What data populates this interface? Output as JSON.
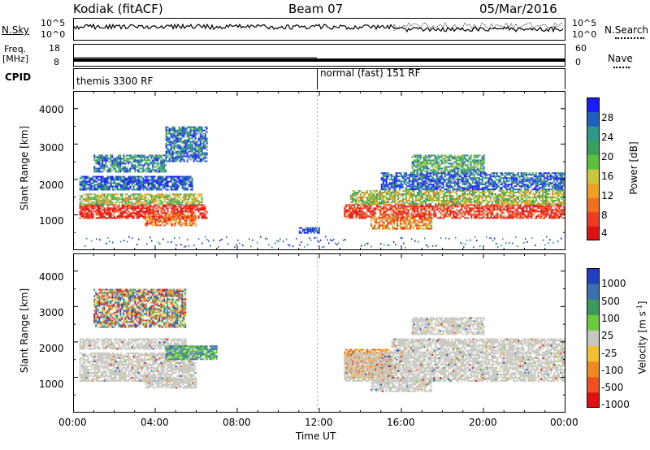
{
  "header": {
    "station": "Kodiak (fitACF)",
    "beam": "Beam 07",
    "date": "05/Mar/2016"
  },
  "nsky_panel": {
    "left_label": "N.Sky",
    "right_label": "N.Search",
    "left_ticks": [
      "10^5",
      "10^0"
    ],
    "right_ticks": [
      "10^5",
      "10^0"
    ]
  },
  "freq_panel": {
    "left_label_line1": "Freq.",
    "left_label_line2": "[MHz]",
    "right_label": "Nave",
    "left_ticks": [
      "18",
      "8"
    ],
    "right_ticks": [
      "60",
      "0"
    ]
  },
  "cpid_panel": {
    "label": "CPID",
    "mode_1": "themis 3300 RF",
    "mode_2": "normal (fast) 151 RF"
  },
  "x_axis": {
    "label": "Time UT",
    "ticks": [
      "00:00",
      "04:00",
      "08:00",
      "12:00",
      "16:00",
      "20:00",
      "00:00"
    ]
  },
  "chart_data": [
    {
      "type": "heatmap",
      "name": "power",
      "ylabel": "Slant Range [km]",
      "ylim": [
        0,
        4500
      ],
      "y_ticks": [
        "4000",
        "3000",
        "2000",
        "1000"
      ],
      "xlim_hours": [
        0,
        24
      ],
      "colorbar": {
        "label": "Power [dB]",
        "ticks": [
          "28",
          "24",
          "20",
          "16",
          "12",
          "8",
          "4"
        ],
        "colors": [
          "#1a1aff",
          "#1f5fbf",
          "#2a9a8a",
          "#3aa05a",
          "#5cbf3a",
          "#c8c83a",
          "#f0a020",
          "#f07020",
          "#f03a20",
          "#e01010"
        ]
      },
      "bands": [
        {
          "t0": 0.3,
          "t1": 6.5,
          "r0": 900,
          "r1": 1300,
          "level": 0.95
        },
        {
          "t0": 0.3,
          "t1": 6.3,
          "r0": 1300,
          "r1": 1600,
          "level": 0.5
        },
        {
          "t0": 0.3,
          "t1": 5.8,
          "r0": 1700,
          "r1": 2100,
          "level": 0.15
        },
        {
          "t0": 3.5,
          "t1": 6.0,
          "r0": 700,
          "r1": 1000,
          "level": 0.75
        },
        {
          "t0": 1.0,
          "t1": 4.5,
          "r0": 2200,
          "r1": 2700,
          "level": 0.25
        },
        {
          "t0": 4.5,
          "t1": 6.5,
          "r0": 2500,
          "r1": 3500,
          "level": 0.2
        },
        {
          "t0": 11.0,
          "t1": 12.0,
          "r0": 500,
          "r1": 650,
          "level": 0.1
        },
        {
          "t0": 13.2,
          "t1": 24.0,
          "r0": 900,
          "r1": 1300,
          "level": 0.9
        },
        {
          "t0": 13.5,
          "t1": 24.0,
          "r0": 1300,
          "r1": 1700,
          "level": 0.5
        },
        {
          "t0": 15.0,
          "t1": 24.0,
          "r0": 1700,
          "r1": 2200,
          "level": 0.15
        },
        {
          "t0": 14.5,
          "t1": 17.5,
          "r0": 600,
          "r1": 950,
          "level": 0.7
        },
        {
          "t0": 16.5,
          "t1": 20.0,
          "r0": 2200,
          "r1": 2700,
          "level": 0.35
        }
      ]
    },
    {
      "type": "heatmap",
      "name": "velocity",
      "ylabel": "Slant Range [km]",
      "ylim": [
        0,
        4500
      ],
      "y_ticks": [
        "4000",
        "3000",
        "2000",
        "1000"
      ],
      "xlim_hours": [
        0,
        24
      ],
      "colorbar": {
        "label": "Velocity [m s",
        "label_sup": "-1",
        "label_end": "]",
        "ticks": [
          "1000",
          "500",
          "100",
          "25",
          "-25",
          "-100",
          "-500",
          "-1000"
        ],
        "colors": [
          "#2040c0",
          "#3a70b0",
          "#3a9a5a",
          "#6acc3a",
          "#c8c8c0",
          "#f0c030",
          "#f08a20",
          "#f05020",
          "#e01010"
        ]
      },
      "bands": [
        {
          "t0": 0.3,
          "t1": 6.0,
          "r0": 900,
          "r1": 1700,
          "level": "ground"
        },
        {
          "t0": 3.5,
          "t1": 6.0,
          "r0": 700,
          "r1": 1000,
          "level": "ground"
        },
        {
          "t0": 0.3,
          "t1": 5.5,
          "r0": 1800,
          "r1": 2100,
          "level": "ground"
        },
        {
          "t0": 4.5,
          "t1": 7.0,
          "r0": 1500,
          "r1": 1900,
          "level": "pos"
        },
        {
          "t0": 1.0,
          "t1": 5.5,
          "r0": 2400,
          "r1": 3500,
          "level": "mix"
        },
        {
          "t0": 13.2,
          "t1": 15.5,
          "r0": 1000,
          "r1": 1800,
          "level": "neg"
        },
        {
          "t0": 13.2,
          "t1": 24.0,
          "r0": 900,
          "r1": 1700,
          "level": "ground"
        },
        {
          "t0": 15.5,
          "t1": 24.0,
          "r0": 1700,
          "r1": 2100,
          "level": "ground"
        },
        {
          "t0": 14.5,
          "t1": 17.5,
          "r0": 600,
          "r1": 950,
          "level": "ground"
        },
        {
          "t0": 16.5,
          "t1": 20.0,
          "r0": 2200,
          "r1": 2700,
          "level": "ground"
        }
      ]
    }
  ]
}
